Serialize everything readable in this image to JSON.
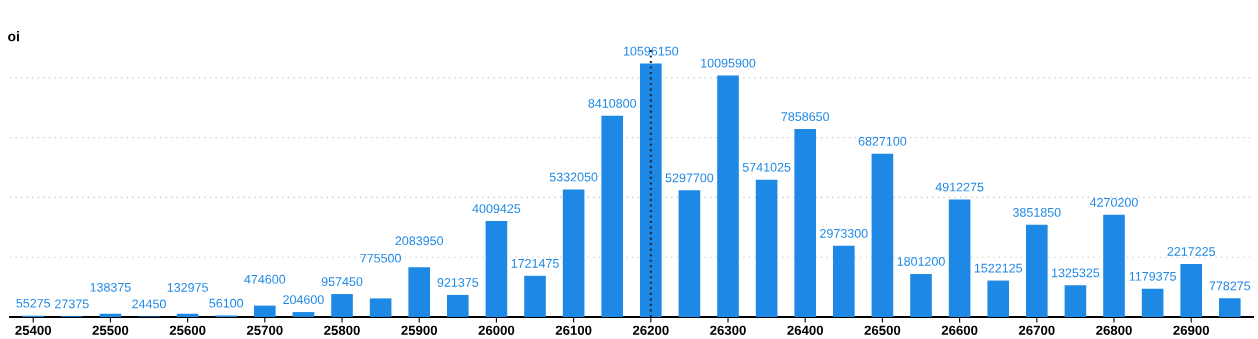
{
  "chart_data": {
    "type": "bar",
    "ylabel": "oi",
    "x": [
      25400,
      25450,
      25500,
      25550,
      25600,
      25650,
      25700,
      25750,
      25800,
      25850,
      25900,
      25950,
      26000,
      26050,
      26100,
      26150,
      26200,
      26250,
      26300,
      26350,
      26400,
      26450,
      26500,
      26550,
      26600,
      26650,
      26700,
      26750,
      26800,
      26850,
      26900,
      26950
    ],
    "values": [
      55275,
      27375,
      138375,
      24450,
      132975,
      56100,
      474600,
      204600,
      957450,
      775500,
      2083950,
      921375,
      4009425,
      1721475,
      5332050,
      8410800,
      10596150,
      5297700,
      10095900,
      5741025,
      7858650,
      2973300,
      6827100,
      1801200,
      4912275,
      1522125,
      3851850,
      1325325,
      4270200,
      1179375,
      2217225,
      778275
    ],
    "color": "#1e88e5",
    "data_labels": true,
    "xlim": [
      25370,
      26980
    ],
    "xticks": [
      25400,
      25500,
      25600,
      25700,
      25800,
      25900,
      26000,
      26100,
      26200,
      26300,
      26400,
      26500,
      26600,
      26700,
      26800,
      26900
    ],
    "ylim": [
      0,
      11200000
    ],
    "yticks": [
      {
        "value": 2500000,
        "label": null
      },
      {
        "value": 5000000,
        "label": null
      },
      {
        "value": 7500000,
        "label": null
      },
      {
        "value": 10000000,
        "label": null
      }
    ],
    "tick_labels": "x",
    "grid": "y",
    "ref_lines": [
      {
        "axis": "x",
        "value": 26200,
        "color": "#1a2a3a",
        "line_style": "dotted"
      }
    ]
  }
}
